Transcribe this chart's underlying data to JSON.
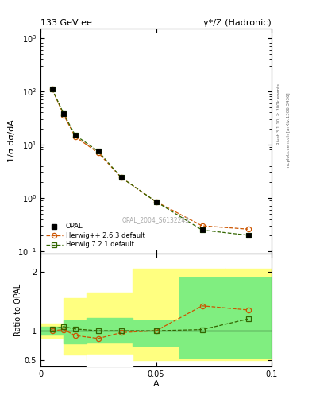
{
  "title_left": "133 GeV ee",
  "title_right": "γ*/Z (Hadronic)",
  "right_label_top": "Rivet 3.1.10, ≥ 300k events",
  "right_label_bottom": "mcplots.cern.ch [arXiv:1306.3436]",
  "watermark": "OPAL_2004_S6132243",
  "xlabel": "A",
  "ylabel_main": "1/σ dσ/dA",
  "ylabel_ratio": "Ratio to OPAL",
  "xlim": [
    0.0,
    0.1
  ],
  "ylim_main": [
    0.09,
    1500
  ],
  "ylim_ratio": [
    0.4,
    2.3
  ],
  "opal_x": [
    0.005,
    0.01,
    0.015,
    0.025,
    0.035,
    0.05,
    0.07,
    0.09
  ],
  "opal_y": [
    110.0,
    38.0,
    15.0,
    7.5,
    2.4,
    0.85,
    0.25,
    0.2
  ],
  "herwig263_x": [
    0.005,
    0.01,
    0.015,
    0.025,
    0.035,
    0.05,
    0.07,
    0.09
  ],
  "herwig263_y": [
    110.0,
    36.0,
    14.0,
    7.0,
    2.4,
    0.85,
    0.3,
    0.26
  ],
  "herwig721_x": [
    0.005,
    0.01,
    0.015,
    0.025,
    0.035,
    0.05,
    0.07,
    0.09
  ],
  "herwig721_y": [
    110.0,
    38.0,
    15.0,
    7.5,
    2.4,
    0.85,
    0.25,
    0.2
  ],
  "ratio263_x": [
    0.005,
    0.01,
    0.015,
    0.025,
    0.035,
    0.05,
    0.07,
    0.09
  ],
  "ratio263_y": [
    1.0,
    1.02,
    0.92,
    0.87,
    0.97,
    1.0,
    1.42,
    1.35
  ],
  "ratio721_x": [
    0.005,
    0.01,
    0.015,
    0.025,
    0.035,
    0.05,
    0.07,
    0.09
  ],
  "ratio721_y": [
    1.03,
    1.07,
    1.03,
    1.0,
    1.0,
    1.0,
    1.02,
    1.2
  ],
  "band_yellow_edges": [
    0.0,
    0.01,
    0.02,
    0.04,
    0.08,
    0.1
  ],
  "band_yellow_lo": [
    0.88,
    0.6,
    0.5,
    0.5,
    0.5
  ],
  "band_yellow_hi": [
    1.12,
    1.55,
    1.65,
    2.05,
    2.05
  ],
  "band_green_edges": [
    0.0,
    0.01,
    0.02,
    0.04,
    0.06,
    0.08,
    0.1
  ],
  "band_green_lo": [
    0.93,
    0.78,
    0.8,
    0.75,
    0.55,
    0.55
  ],
  "band_green_hi": [
    1.07,
    1.18,
    1.22,
    1.18,
    1.9,
    1.9
  ],
  "band_white_edges": [
    0.02,
    0.04
  ],
  "band_white_lo": [
    0.4
  ],
  "band_white_hi": [
    0.6
  ],
  "color_opal": "#000000",
  "color_herwig263": "#cc5500",
  "color_herwig721": "#336600",
  "color_yellow": "#ffff80",
  "color_green": "#80ee80",
  "bg_color": "#ffffff"
}
